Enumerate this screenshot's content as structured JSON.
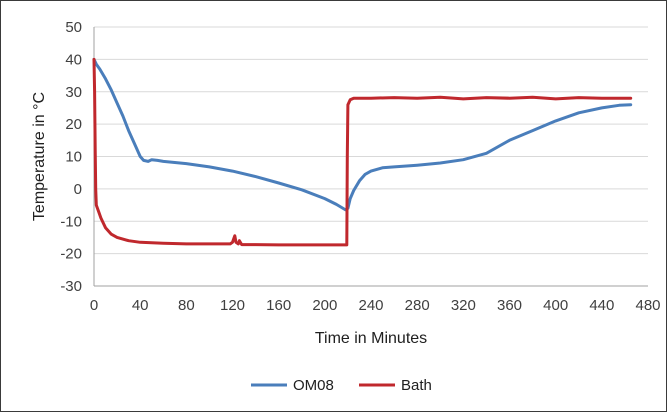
{
  "chart_data": {
    "type": "line",
    "title": "",
    "xlabel": "Time in Minutes",
    "ylabel": "Temperature in °C",
    "xlim": [
      0,
      480
    ],
    "ylim": [
      -30,
      50
    ],
    "x_ticks": [
      0,
      40,
      80,
      120,
      160,
      200,
      240,
      280,
      320,
      360,
      400,
      440,
      480
    ],
    "y_ticks": [
      -30,
      -20,
      -10,
      0,
      10,
      20,
      30,
      40,
      50
    ],
    "grid": true,
    "legend_position": "bottom",
    "series": [
      {
        "name": "OM08",
        "color": "#4a7ebb",
        "points": [
          [
            0,
            40
          ],
          [
            2,
            38.5
          ],
          [
            5,
            37
          ],
          [
            10,
            34
          ],
          [
            15,
            30.5
          ],
          [
            20,
            26.5
          ],
          [
            25,
            22.5
          ],
          [
            30,
            18
          ],
          [
            35,
            14
          ],
          [
            40,
            10
          ],
          [
            43,
            8.8
          ],
          [
            47,
            8.5
          ],
          [
            50,
            9
          ],
          [
            55,
            8.8
          ],
          [
            60,
            8.5
          ],
          [
            80,
            7.8
          ],
          [
            100,
            6.8
          ],
          [
            120,
            5.5
          ],
          [
            140,
            3.8
          ],
          [
            160,
            1.8
          ],
          [
            180,
            -0.3
          ],
          [
            200,
            -3
          ],
          [
            210,
            -4.8
          ],
          [
            218,
            -6.5
          ],
          [
            220,
            -6
          ],
          [
            222,
            -3
          ],
          [
            225,
            -0.5
          ],
          [
            230,
            2.5
          ],
          [
            235,
            4.5
          ],
          [
            240,
            5.5
          ],
          [
            250,
            6.5
          ],
          [
            260,
            6.8
          ],
          [
            280,
            7.3
          ],
          [
            300,
            8
          ],
          [
            320,
            9
          ],
          [
            340,
            11
          ],
          [
            360,
            15
          ],
          [
            380,
            18
          ],
          [
            400,
            21
          ],
          [
            420,
            23.5
          ],
          [
            440,
            25
          ],
          [
            455,
            25.8
          ],
          [
            465,
            26
          ]
        ]
      },
      {
        "name": "Bath",
        "color": "#c0282d",
        "points": [
          [
            0,
            40
          ],
          [
            0.5,
            30
          ],
          [
            1,
            12
          ],
          [
            1.5,
            0
          ],
          [
            2,
            -5
          ],
          [
            4,
            -7
          ],
          [
            6,
            -9
          ],
          [
            8,
            -10.5
          ],
          [
            10,
            -12
          ],
          [
            15,
            -14
          ],
          [
            20,
            -15
          ],
          [
            30,
            -16
          ],
          [
            40,
            -16.5
          ],
          [
            60,
            -16.8
          ],
          [
            80,
            -17
          ],
          [
            100,
            -17
          ],
          [
            118,
            -17
          ],
          [
            120,
            -16.5
          ],
          [
            122,
            -14.5
          ],
          [
            123,
            -16.5
          ],
          [
            125,
            -17
          ],
          [
            126,
            -16
          ],
          [
            128,
            -17.2
          ],
          [
            140,
            -17.2
          ],
          [
            160,
            -17.3
          ],
          [
            180,
            -17.3
          ],
          [
            200,
            -17.3
          ],
          [
            219,
            -17.3
          ],
          [
            219.5,
            10
          ],
          [
            220,
            26
          ],
          [
            222,
            27.5
          ],
          [
            225,
            28
          ],
          [
            240,
            28
          ],
          [
            260,
            28.2
          ],
          [
            280,
            28
          ],
          [
            300,
            28.3
          ],
          [
            320,
            27.8
          ],
          [
            340,
            28.2
          ],
          [
            360,
            28
          ],
          [
            380,
            28.3
          ],
          [
            400,
            27.8
          ],
          [
            420,
            28.2
          ],
          [
            440,
            28
          ],
          [
            465,
            28
          ]
        ]
      }
    ]
  }
}
